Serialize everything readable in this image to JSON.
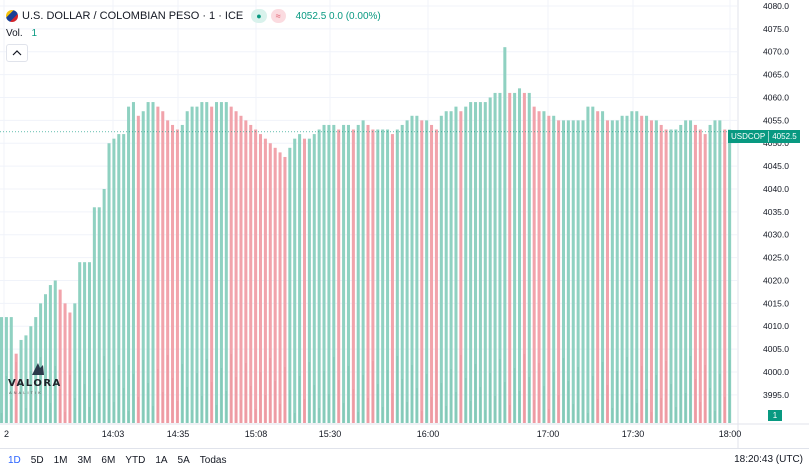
{
  "header": {
    "symbol_title": "U.S. DOLLAR / COLOMBIAN PESO · 1 · ICE",
    "last_price_text": "4052.5  0.0 (0.00%)"
  },
  "volume": {
    "label": "Vol.",
    "value": "1"
  },
  "price_tag": {
    "symbol": "USDCOP",
    "price": "4052.5"
  },
  "volume_tag": "1",
  "axis": {
    "y_labels": [
      "4080.0",
      "4075.0",
      "4070.0",
      "4065.0",
      "4060.0",
      "4055.0",
      "4050.0",
      "4045.0",
      "4040.0",
      "4035.0",
      "4030.0",
      "4025.0",
      "4020.0",
      "4015.0",
      "4010.0",
      "4005.0",
      "4000.0",
      "3995.0"
    ],
    "x_labels": [
      "2",
      "14:03",
      "14:35",
      "15:08",
      "15:30",
      "16:00",
      "17:00",
      "17:30",
      "18:00"
    ]
  },
  "bottom_bar": {
    "ranges": [
      "1D",
      "5D",
      "1M",
      "3M",
      "6M",
      "YTD",
      "1A",
      "5A",
      "Todas"
    ],
    "active_range": "1D",
    "clock": "18:20:43 (UTC)"
  },
  "logo": {
    "text": "VALORA",
    "sub": "ANALITIK"
  },
  "colors": {
    "up": "#8fd1c1",
    "down": "#f1a3ab",
    "up_vol": "#9fd9cb",
    "down_vol": "#f5b3ba",
    "accent": "#089981"
  },
  "chart_data": {
    "type": "bar",
    "title": "U.S. DOLLAR / COLOMBIAN PESO · 1 · ICE",
    "ylim": [
      3993.0,
      4080.0
    ],
    "x_ticks": [
      "2",
      "14:03",
      "14:35",
      "15:08",
      "15:30",
      "16:00",
      "17:00",
      "17:30",
      "18:00"
    ],
    "series": [
      {
        "values": [
          4012,
          4012,
          4012,
          4004,
          4007,
          4008,
          4010,
          4012,
          4015,
          4017,
          4019,
          4020,
          4018,
          4015,
          4013,
          4015,
          4024,
          4024,
          4024,
          4036,
          4036,
          4040,
          4050,
          4051,
          4052,
          4052,
          4058,
          4059,
          4056,
          4057,
          4059,
          4059,
          4058,
          4057,
          4055,
          4054,
          4053,
          4054,
          4057,
          4058,
          4058,
          4059,
          4059,
          4058,
          4059,
          4059,
          4059,
          4058,
          4057,
          4056,
          4055,
          4054,
          4053,
          4052,
          4051,
          4050,
          4049,
          4048,
          4047,
          4049,
          4051,
          4052,
          4051,
          4051,
          4052,
          4053,
          4054,
          4054,
          4054,
          4053,
          4054,
          4054,
          4053,
          4054,
          4055,
          4054,
          4053,
          4053,
          4053,
          4053,
          4052,
          4053,
          4054,
          4055,
          4056,
          4056,
          4055,
          4055,
          4054,
          4053,
          4056,
          4057,
          4057,
          4058,
          4057,
          4058,
          4059,
          4059,
          4059,
          4059,
          4060,
          4061,
          4061,
          4071,
          4061,
          4061,
          4062,
          4061,
          4061,
          4058,
          4057,
          4057,
          4056,
          4056,
          4055,
          4055,
          4055,
          4055,
          4055,
          4055,
          4058,
          4058,
          4057,
          4057,
          4055,
          4055,
          4055,
          4056,
          4056,
          4057,
          4057,
          4056,
          4056,
          4055,
          4055,
          4054,
          4053,
          4053,
          4053,
          4054,
          4055,
          4055,
          4054,
          4053,
          4052,
          4054,
          4055,
          4055,
          4053,
          4053
        ]
      },
      {
        "values": [
          1,
          1,
          1,
          1,
          1,
          1,
          1,
          1,
          1,
          1,
          1,
          1,
          1,
          1,
          1,
          1,
          1,
          1,
          1,
          1,
          1,
          1,
          1,
          1,
          1,
          1,
          1,
          1,
          1,
          1,
          1,
          1,
          1,
          1,
          1,
          1,
          1,
          1,
          1,
          1,
          1,
          1,
          1,
          1,
          1,
          1,
          1,
          1,
          1,
          1,
          1,
          1,
          1,
          1,
          1,
          1,
          1,
          1,
          1,
          1,
          1,
          1,
          1,
          1,
          1,
          1,
          1,
          1,
          1,
          1,
          1,
          1,
          1,
          1,
          1,
          1,
          1,
          1,
          1,
          1,
          1,
          1,
          1,
          1,
          1,
          1,
          1,
          1,
          1,
          1,
          1,
          1,
          1,
          1,
          1,
          1,
          1,
          1,
          1,
          1,
          1,
          1,
          1,
          1,
          1,
          1,
          1,
          1,
          1,
          1,
          1,
          1,
          1,
          1,
          1,
          1,
          1,
          1,
          1,
          1,
          1,
          1,
          1,
          1,
          1,
          1,
          1,
          1,
          1,
          1,
          1,
          1,
          1,
          1,
          1,
          1,
          1,
          1,
          1,
          1,
          1,
          1,
          1,
          1,
          1,
          1,
          1,
          1,
          1
        ]
      }
    ]
  }
}
